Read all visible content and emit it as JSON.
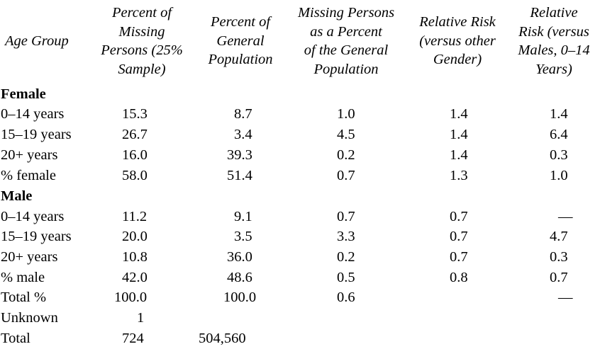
{
  "headers": [
    "Age Group",
    "Percent of\nMissing\nPersons (25%\nSample)",
    "Percent of\nGeneral\nPopulation",
    "Missing Persons\nas a Percent\nof the General\nPopulation",
    "Relative Risk\n(versus other\nGender)",
    "Relative\nRisk (versus\nMales, 0–14\nYears)"
  ],
  "sections": [
    {
      "title": "Female",
      "rows": [
        [
          "0–14 years",
          "15.3",
          "8.7",
          "1.0",
          "1.4",
          "1.4"
        ],
        [
          "15–19 years",
          "26.7",
          "3.4",
          "4.5",
          "1.4",
          "6.4"
        ],
        [
          "20+ years",
          "16.0",
          "39.3",
          "0.2",
          "1.4",
          "0.3"
        ],
        [
          "% female",
          "58.0",
          "51.4",
          "0.7",
          "1.3",
          "1.0"
        ]
      ]
    },
    {
      "title": "Male",
      "rows": [
        [
          "0–14 years",
          "11.2",
          "9.1",
          "0.7",
          "0.7",
          "—"
        ],
        [
          "15–19 years",
          "20.0",
          "3.5",
          "3.3",
          "0.7",
          "4.7"
        ],
        [
          "20+ years",
          "10.8",
          "36.0",
          "0.2",
          "0.7",
          "0.3"
        ],
        [
          "% male",
          "42.0",
          "48.6",
          "0.5",
          "0.8",
          "0.7"
        ]
      ]
    }
  ],
  "totals": [
    [
      "Total %",
      "100.0",
      "100.0",
      "0.6",
      "",
      "—"
    ],
    [
      "Unknown",
      "1",
      "",
      "",
      "",
      ""
    ],
    [
      "Total",
      "724",
      "504,560",
      "",
      "",
      ""
    ]
  ]
}
